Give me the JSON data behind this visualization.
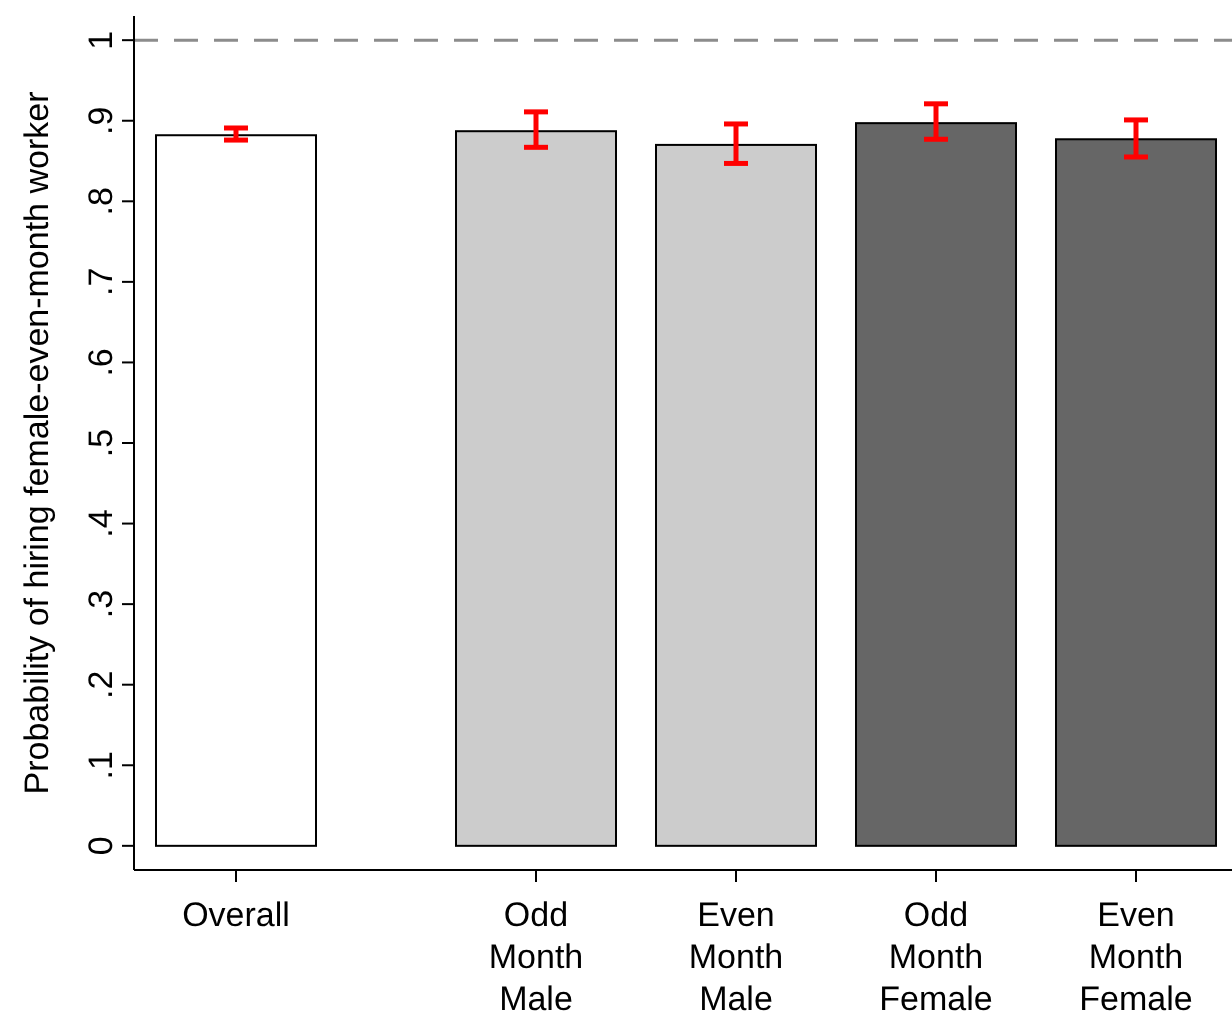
{
  "chart_data": {
    "type": "bar",
    "ylabel": "Probability of hiring female-even-month worker",
    "categories": [
      "Overall",
      "Odd\nMonth\nMale",
      "Even\nMonth\nMale",
      "Odd\nMonth\nFemale",
      "Even\nMonth\nFemale"
    ],
    "values": [
      0.882,
      0.887,
      0.87,
      0.897,
      0.877
    ],
    "errors": [
      [
        0.876,
        0.891
      ],
      [
        0.867,
        0.911
      ],
      [
        0.847,
        0.896
      ],
      [
        0.877,
        0.921
      ],
      [
        0.855,
        0.901
      ]
    ],
    "colors": [
      "#ffffff",
      "#cccccc",
      "#cccccc",
      "#666666",
      "#666666"
    ],
    "ylim": [
      -0.03,
      1.03
    ],
    "yticks": [
      0,
      {
        "value": 0.1,
        "label": ".1"
      },
      {
        "value": 0.2,
        "label": ".2"
      },
      {
        "value": 0.3,
        "label": ".3"
      },
      {
        "value": 0.4,
        "label": ".4"
      },
      {
        "value": 0.5,
        "label": ".5"
      },
      {
        "value": 0.6,
        "label": ".6"
      },
      {
        "value": 0.7,
        "label": ".7"
      },
      {
        "value": 0.8,
        "label": ".8"
      },
      {
        "value": 0.9,
        "label": ".9"
      },
      1
    ],
    "ref_lines": [
      {
        "axis": "y",
        "value": 1,
        "color": "#8c8c8c",
        "line_style": "dashed"
      }
    ],
    "grid": false
  }
}
